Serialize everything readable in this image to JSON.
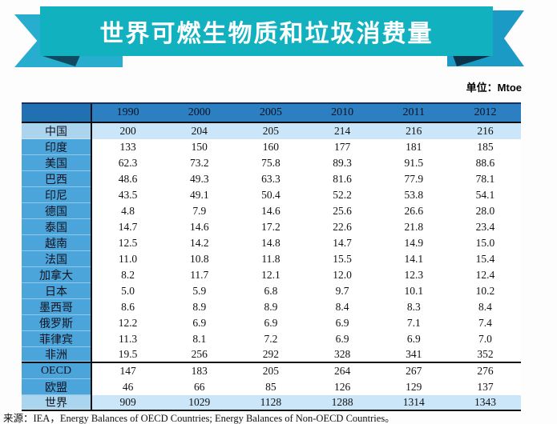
{
  "colors": {
    "ribbon_band": "#11b1c0",
    "ribbon_tail_left": "#27adce",
    "ribbon_tail_right": "#1b9ac6",
    "ribbon_fold": "#0f4a60",
    "header_bg": "#2c80c2",
    "header_corner_bg": "#2070b2",
    "label_column_bg": "#4ba4da",
    "highlight_label_bg": "#abd4ef",
    "highlight_row_bg": "#cbe6f8"
  },
  "chart_data": {
    "type": "table",
    "title": "世界可燃生物质和垃圾消费量",
    "unit_label": "单位：Mtoe",
    "columns": [
      "1990",
      "2000",
      "2005",
      "2010",
      "2011",
      "2012"
    ],
    "rows": [
      {
        "label": "中国",
        "values": [
          "200",
          "204",
          "205",
          "214",
          "216",
          "216"
        ],
        "highlight": true
      },
      {
        "label": "印度",
        "values": [
          "133",
          "150",
          "160",
          "177",
          "181",
          "185"
        ]
      },
      {
        "label": "美国",
        "values": [
          "62.3",
          "73.2",
          "75.8",
          "89.3",
          "91.5",
          "88.6"
        ]
      },
      {
        "label": "巴西",
        "values": [
          "48.6",
          "49.3",
          "63.3",
          "81.6",
          "77.9",
          "78.1"
        ]
      },
      {
        "label": "印尼",
        "values": [
          "43.5",
          "49.1",
          "50.4",
          "52.2",
          "53.8",
          "54.1"
        ]
      },
      {
        "label": "德国",
        "values": [
          "4.8",
          "7.9",
          "14.6",
          "25.6",
          "26.6",
          "28.0"
        ]
      },
      {
        "label": "泰国",
        "values": [
          "14.7",
          "14.6",
          "17.2",
          "22.6",
          "21.8",
          "23.4"
        ]
      },
      {
        "label": "越南",
        "values": [
          "12.5",
          "14.2",
          "14.8",
          "14.7",
          "14.9",
          "15.0"
        ]
      },
      {
        "label": "法国",
        "values": [
          "11.0",
          "10.8",
          "11.8",
          "15.5",
          "14.1",
          "15.4"
        ]
      },
      {
        "label": "加拿大",
        "values": [
          "8.2",
          "11.7",
          "12.1",
          "12.0",
          "12.3",
          "12.4"
        ]
      },
      {
        "label": "日本",
        "values": [
          "5.0",
          "5.9",
          "6.8",
          "9.7",
          "10.1",
          "10.2"
        ]
      },
      {
        "label": "墨西哥",
        "values": [
          "8.6",
          "8.9",
          "8.9",
          "8.4",
          "8.3",
          "8.4"
        ]
      },
      {
        "label": "俄罗斯",
        "values": [
          "12.2",
          "6.9",
          "6.9",
          "6.9",
          "7.1",
          "7.4"
        ]
      },
      {
        "label": "菲律宾",
        "values": [
          "11.3",
          "8.1",
          "7.2",
          "6.9",
          "6.9",
          "7.0"
        ]
      },
      {
        "label": "非洲",
        "values": [
          "19.5",
          "256",
          "292",
          "328",
          "341",
          "352"
        ],
        "separator_below": true
      },
      {
        "label": "OECD",
        "values": [
          "147",
          "183",
          "205",
          "264",
          "267",
          "276"
        ]
      },
      {
        "label": "欧盟",
        "values": [
          "46",
          "66",
          "85",
          "126",
          "129",
          "137"
        ]
      },
      {
        "label": "世界",
        "values": [
          "909",
          "1029",
          "1128",
          "1288",
          "1314",
          "1343"
        ],
        "highlight": true
      }
    ],
    "source": "来源：IEA，Energy Balances of OECD Countries; Energy Balances of Non-OECD Countries。"
  }
}
